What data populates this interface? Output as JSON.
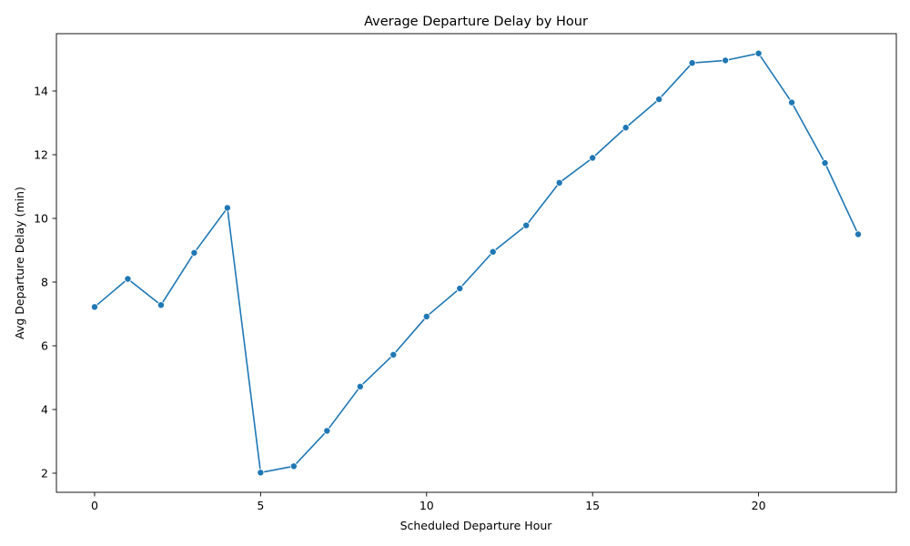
{
  "chart_data": {
    "type": "line",
    "title": "Average Departure Delay by Hour",
    "xlabel": "Scheduled Departure Hour",
    "ylabel": "Avg Departure Delay (min)",
    "xlim": [
      -1.15,
      24.15
    ],
    "ylim": [
      1.4,
      15.8
    ],
    "xticks": [
      0,
      5,
      10,
      15,
      20
    ],
    "yticks": [
      2,
      4,
      6,
      8,
      10,
      12,
      14
    ],
    "grid": false,
    "legend": false,
    "color": "#1f77b4",
    "marker": "circle",
    "x": [
      0,
      1,
      2,
      3,
      4,
      5,
      6,
      7,
      8,
      9,
      10,
      11,
      12,
      13,
      14,
      15,
      16,
      17,
      18,
      19,
      20,
      21,
      22,
      23
    ],
    "y": [
      7.22,
      8.1,
      7.28,
      8.92,
      10.33,
      2.02,
      2.22,
      3.33,
      4.72,
      5.72,
      6.92,
      7.8,
      8.95,
      9.78,
      11.12,
      11.9,
      12.85,
      13.74,
      14.88,
      14.96,
      15.18,
      13.64,
      11.74,
      9.5
    ]
  }
}
